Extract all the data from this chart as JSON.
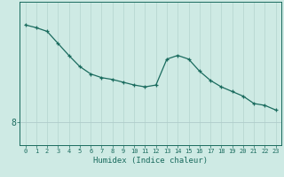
{
  "xlabel": "Humidex (Indice chaleur)",
  "ylabel": "",
  "x_values": [
    0,
    1,
    2,
    3,
    4,
    5,
    6,
    7,
    8,
    9,
    10,
    11,
    12,
    13,
    14,
    15,
    16,
    17,
    18,
    19,
    20,
    21,
    22,
    23
  ],
  "y_values": [
    18.5,
    18.2,
    17.8,
    16.5,
    15.2,
    14.0,
    13.2,
    12.8,
    12.6,
    12.3,
    12.0,
    11.8,
    12.0,
    14.8,
    15.2,
    14.8,
    13.5,
    12.5,
    11.8,
    11.3,
    10.8,
    10.0,
    9.8,
    9.3
  ],
  "y_tick_vals": [
    8
  ],
  "y_tick_labels": [
    "8"
  ],
  "ylim": [
    5.5,
    21
  ],
  "xlim": [
    -0.5,
    23.5
  ],
  "bg_color": "#ceeae4",
  "line_color": "#1a6b5e",
  "grid_color_v": "#b8d8d2",
  "grid_color_h": "#b0ccca",
  "marker": "+"
}
